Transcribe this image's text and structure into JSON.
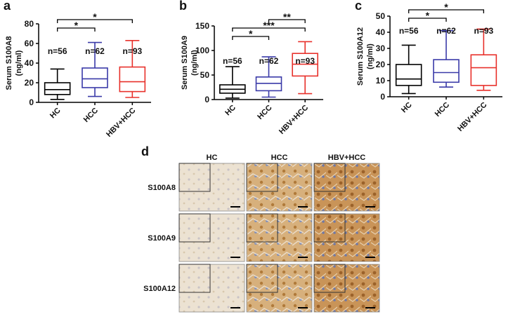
{
  "chart_data": [
    {
      "type": "box",
      "panel": "a",
      "ylabel": [
        "Serum S100A8",
        "(ng/ml)"
      ],
      "categories": [
        "HC",
        "HCC",
        "HBV+HCC"
      ],
      "colors": [
        "#000000",
        "#3a3aa8",
        "#e8312b"
      ],
      "n_labels": [
        "n=56",
        "n=62",
        "n=93"
      ],
      "boxes": [
        {
          "min": 3,
          "q1": 8,
          "median": 13,
          "q3": 20,
          "max": 34
        },
        {
          "min": 6,
          "q1": 15,
          "median": 24,
          "q3": 35,
          "max": 61
        },
        {
          "min": 5,
          "q1": 11,
          "median": 21,
          "q3": 36,
          "max": 63
        }
      ],
      "ylim": [
        0,
        80
      ],
      "yticks": [
        0,
        20,
        40,
        60,
        80
      ],
      "comparisons": [
        {
          "from": "HC",
          "to": "HCC",
          "label": "*"
        },
        {
          "from": "HC",
          "to": "HBV+HCC",
          "label": "*"
        }
      ]
    },
    {
      "type": "box",
      "panel": "b",
      "ylabel": [
        "Serum S100A9",
        "(ng/ml)"
      ],
      "categories": [
        "HC",
        "HCC",
        "HBV+HCC"
      ],
      "colors": [
        "#000000",
        "#3a3aa8",
        "#e8312b"
      ],
      "n_labels": [
        "n=56",
        "n=62",
        "n=93"
      ],
      "boxes": [
        {
          "min": 3,
          "q1": 13,
          "median": 21,
          "q3": 30,
          "max": 67
        },
        {
          "min": 5,
          "q1": 18,
          "median": 33,
          "q3": 46,
          "max": 87
        },
        {
          "min": 12,
          "q1": 48,
          "median": 72,
          "q3": 94,
          "max": 118
        }
      ],
      "ylim": [
        0,
        150
      ],
      "yticks": [
        0,
        50,
        100,
        150
      ],
      "comparisons": [
        {
          "from": "HC",
          "to": "HCC",
          "label": "*"
        },
        {
          "from": "HC",
          "to": "HBV+HCC",
          "label": "***"
        },
        {
          "from": "HCC",
          "to": "HBV+HCC",
          "label": "**"
        }
      ]
    },
    {
      "type": "box",
      "panel": "c",
      "ylabel": [
        "Serum S100A12",
        "(ng/ml)"
      ],
      "categories": [
        "HC",
        "HCC",
        "HBV+HCC"
      ],
      "colors": [
        "#000000",
        "#3a3aa8",
        "#e8312b"
      ],
      "n_labels": [
        "n=56",
        "n=62",
        "n=93"
      ],
      "boxes": [
        {
          "min": 2,
          "q1": 7,
          "median": 11,
          "q3": 20,
          "max": 32
        },
        {
          "min": 6,
          "q1": 9,
          "median": 15,
          "q3": 23,
          "max": 41
        },
        {
          "min": 4,
          "q1": 7,
          "median": 18,
          "q3": 26,
          "max": 42
        }
      ],
      "ylim": [
        0,
        50
      ],
      "yticks": [
        0,
        10,
        20,
        30,
        40,
        50
      ],
      "comparisons": [
        {
          "from": "HC",
          "to": "HCC",
          "label": "*"
        },
        {
          "from": "HC",
          "to": "HBV+HCC",
          "label": "*"
        }
      ]
    }
  ],
  "panel_d": {
    "label": "d",
    "columns": [
      "HC",
      "HCC",
      "HBV+HCC"
    ],
    "rows": [
      "S100A8",
      "S100A9",
      "S100A12"
    ]
  }
}
